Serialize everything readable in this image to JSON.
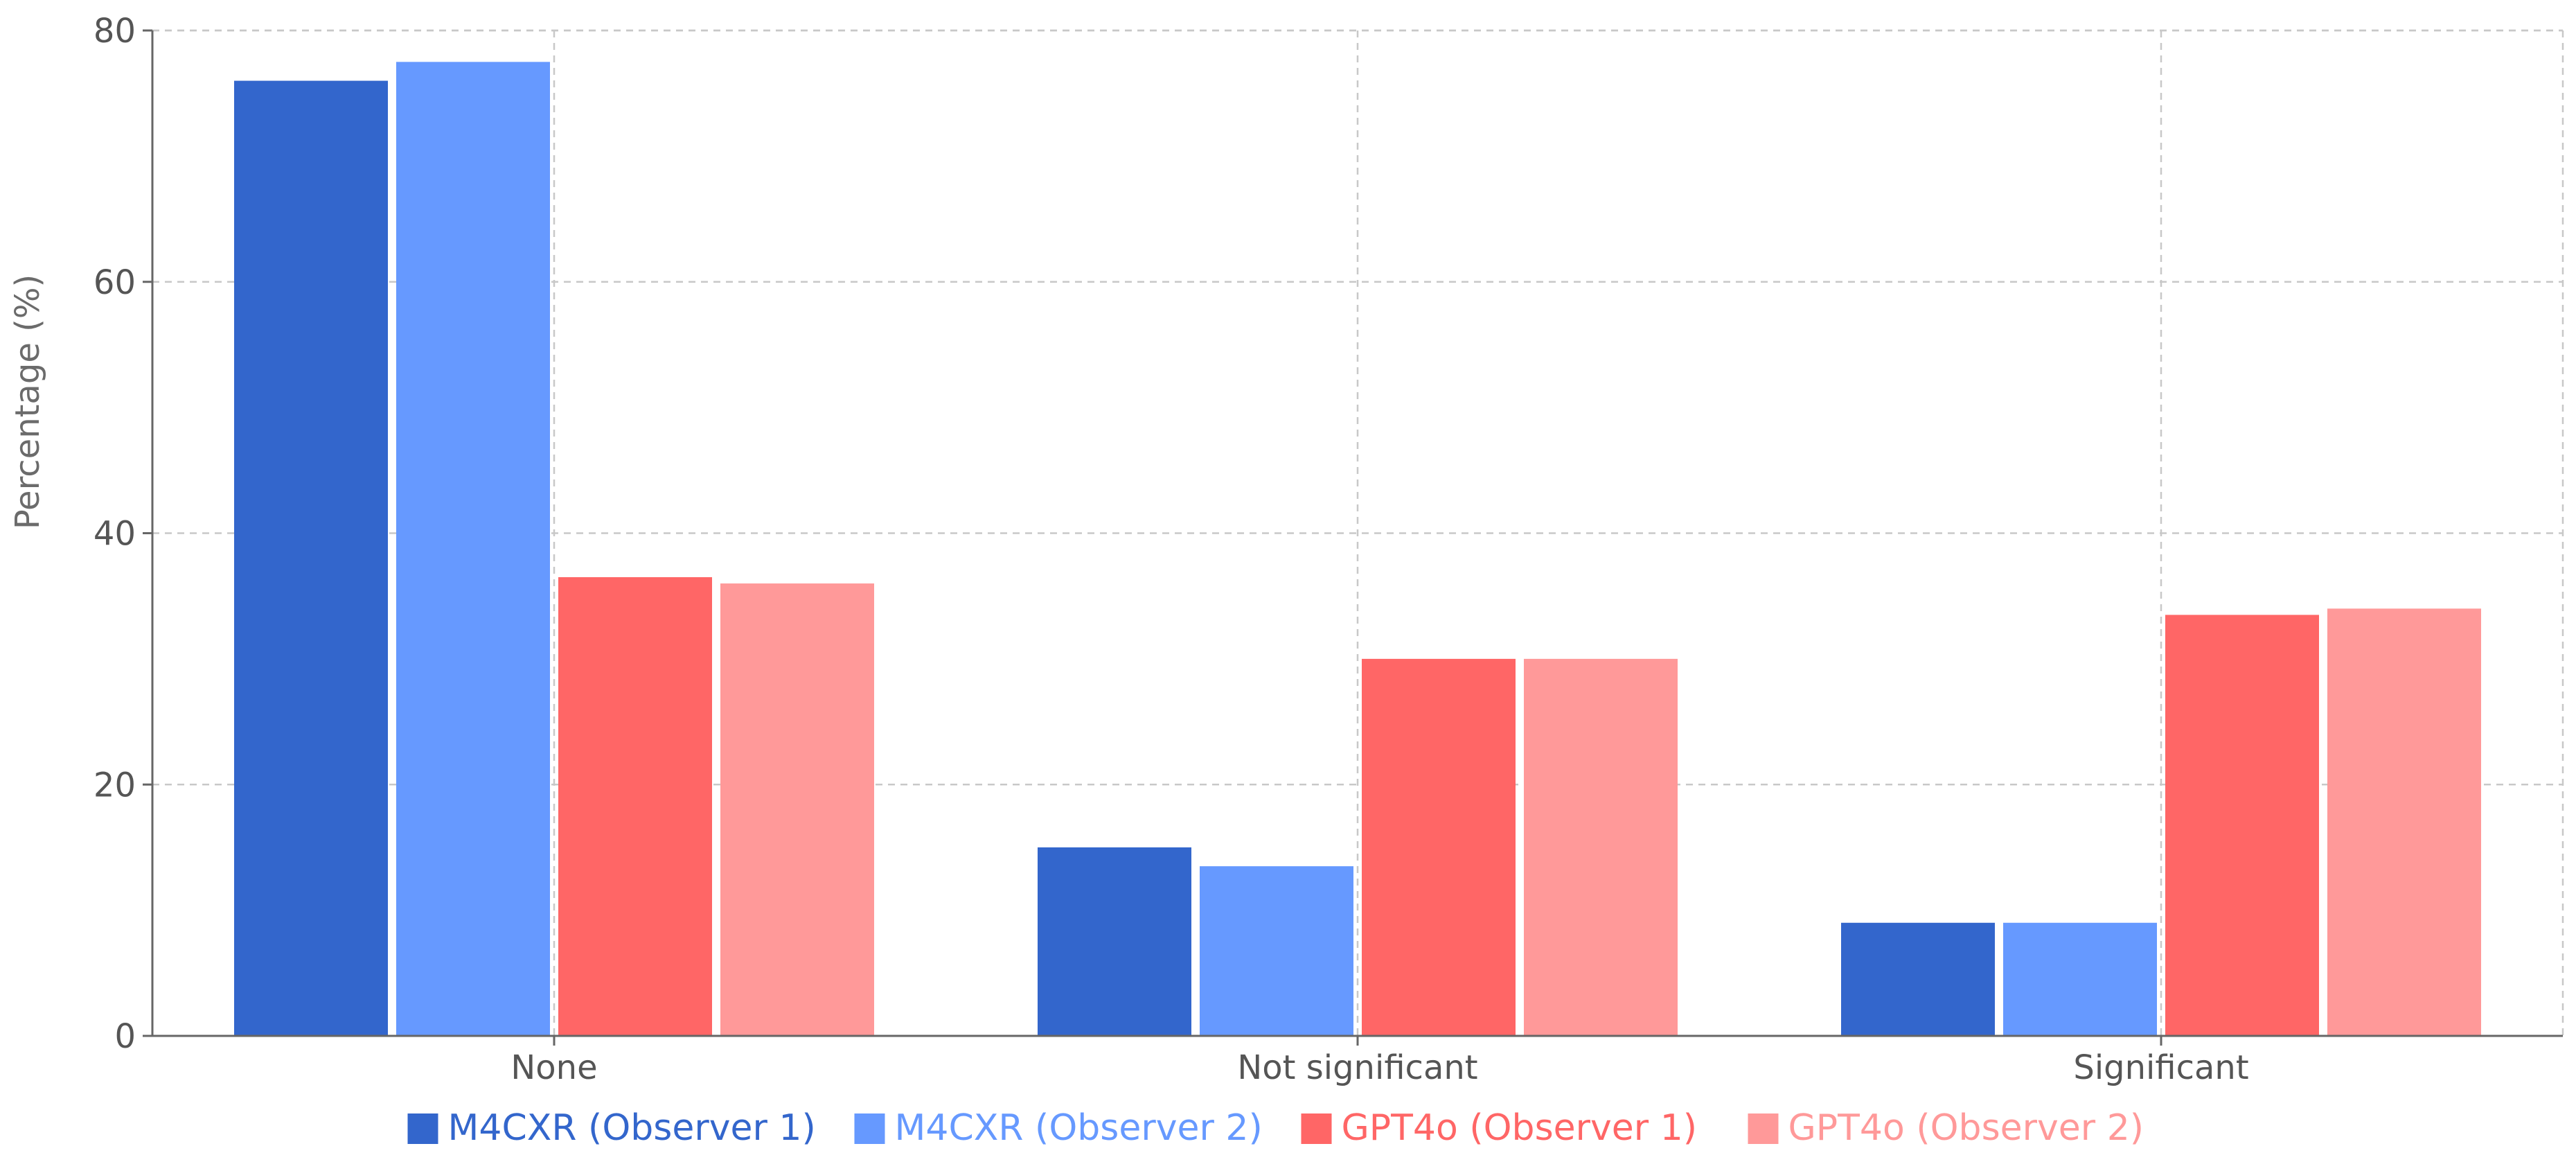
{
  "chart_data": {
    "type": "bar",
    "title": "",
    "xlabel": "",
    "ylabel": "Percentage (%)",
    "ylim": [
      0,
      80
    ],
    "yticks": [
      0,
      20,
      40,
      60,
      80
    ],
    "grid": true,
    "legend_position": "bottom",
    "categories": [
      "None",
      "Not significant",
      "Significant"
    ],
    "series": [
      {
        "name": "M4CXR (Observer 1)",
        "color": "#3366CC",
        "values": [
          76,
          15,
          9
        ]
      },
      {
        "name": "M4CXR (Observer 2)",
        "color": "#6699FF",
        "values": [
          77.5,
          13.5,
          9
        ]
      },
      {
        "name": "GPT4o (Observer 1)",
        "color": "#FF6666",
        "values": [
          36.5,
          30,
          33.5
        ]
      },
      {
        "name": "GPT4o (Observer 2)",
        "color": "#FF9999",
        "values": [
          36,
          30,
          34
        ]
      }
    ]
  }
}
